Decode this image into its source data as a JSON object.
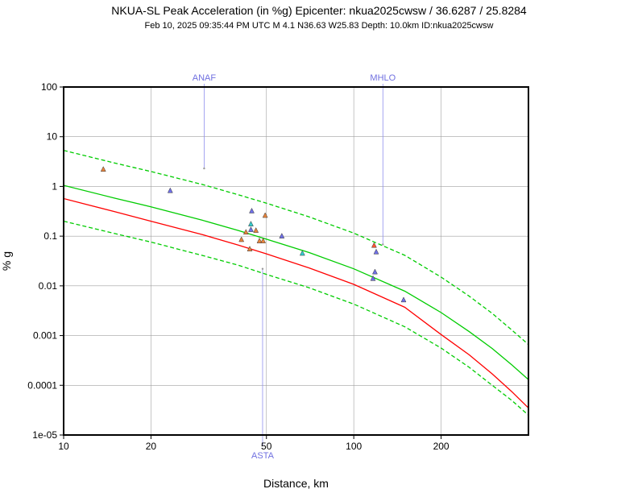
{
  "title": "NKUA-SL Peak Acceleration (in %g) Epicenter: nkua2025cwsw / 36.6287 / 25.8284",
  "subtitle": "Feb 10, 2025 09:35:44 PM UTC   M 4.1   N36.63 W25.83   Depth: 10.0km   ID:nkua2025cwsw",
  "colors": {
    "frame": "#000000",
    "grid": "#a0a0a0",
    "median_fit": "#00cc00",
    "alt_fit": "#ff0000",
    "station_label": "#7070e0"
  },
  "chart_data": {
    "type": "scatter",
    "xscale": "log",
    "yscale": "log",
    "xlim": [
      10,
      400
    ],
    "ylim": [
      1e-05,
      100
    ],
    "xlabel": "Distance, km",
    "ylabel": "% g",
    "x_ticks": [
      {
        "value": 10,
        "label": "10"
      },
      {
        "value": 20,
        "label": "20"
      },
      {
        "value": 50,
        "label": "50"
      },
      {
        "value": 100,
        "label": "100"
      },
      {
        "value": 200,
        "label": "200"
      }
    ],
    "y_ticks": [
      {
        "value": 100,
        "label": "100"
      },
      {
        "value": 10,
        "label": "10"
      },
      {
        "value": 1,
        "label": "1"
      },
      {
        "value": 0.1,
        "label": "0.1"
      },
      {
        "value": 0.01,
        "label": "0.01"
      },
      {
        "value": 0.001,
        "label": "0.001"
      },
      {
        "value": 0.0001,
        "label": "0.0001"
      },
      {
        "value": 1e-05,
        "label": "1e-05"
      }
    ],
    "grid": true,
    "station_labels": [
      {
        "label": "ANAF",
        "x": 30.5,
        "y": 2.3,
        "position": "top"
      },
      {
        "label": "MHLO",
        "x": 126,
        "y": 0.068,
        "position": "top"
      },
      {
        "label": "ASTA",
        "x": 48.5,
        "y": 0.022,
        "position": "bottom"
      }
    ],
    "series": [
      {
        "name": "fit-median",
        "kind": "line",
        "color": "#00cc00",
        "style": "solid",
        "x": [
          10,
          15,
          20,
          30,
          40,
          50,
          70,
          100,
          150,
          200,
          250,
          300,
          350,
          400
        ],
        "y": [
          1.05,
          0.58,
          0.39,
          0.21,
          0.13,
          0.087,
          0.047,
          0.022,
          0.0078,
          0.0029,
          0.0012,
          0.00055,
          0.00026,
          0.00013
        ]
      },
      {
        "name": "fit-plus-sigma",
        "kind": "line",
        "color": "#00cc00",
        "style": "dashed",
        "x": [
          10,
          15,
          20,
          30,
          40,
          50,
          70,
          100,
          150,
          200,
          250,
          300,
          350,
          400
        ],
        "y": [
          5.3,
          2.95,
          2.0,
          1.1,
          0.68,
          0.46,
          0.245,
          0.115,
          0.041,
          0.015,
          0.0062,
          0.0028,
          0.0013,
          0.00066
        ]
      },
      {
        "name": "fit-minus-sigma",
        "kind": "line",
        "color": "#00cc00",
        "style": "dashed",
        "x": [
          10,
          15,
          20,
          30,
          40,
          50,
          70,
          100,
          150,
          200,
          250,
          300,
          350,
          400
        ],
        "y": [
          0.2,
          0.113,
          0.076,
          0.041,
          0.026,
          0.017,
          0.0092,
          0.0043,
          0.0015,
          0.00056,
          0.00023,
          0.0001,
          5e-05,
          2.5e-05
        ]
      },
      {
        "name": "fit-alternate",
        "kind": "line",
        "color": "#ff0000",
        "style": "solid",
        "x": [
          10,
          15,
          20,
          30,
          40,
          50,
          70,
          100,
          150,
          200,
          250,
          300,
          350,
          400
        ],
        "y": [
          0.57,
          0.31,
          0.2,
          0.108,
          0.066,
          0.044,
          0.023,
          0.0107,
          0.0037,
          0.00105,
          0.00041,
          0.00017,
          7.5e-05,
          3.5e-05
        ]
      },
      {
        "name": "stations-orange",
        "kind": "points",
        "color": "#e8843c",
        "x": [
          13.7,
          41,
          42.5,
          43.8,
          46,
          47.3,
          48.7,
          49.5
        ],
        "y": [
          2.2,
          0.085,
          0.12,
          0.055,
          0.13,
          0.08,
          0.08,
          0.26
        ]
      },
      {
        "name": "stations-red",
        "kind": "points",
        "color": "#ff5533",
        "x": [
          117.5
        ],
        "y": [
          0.065
        ]
      },
      {
        "name": "stations-cyan",
        "kind": "points",
        "color": "#33cccc",
        "x": [
          44.2,
          66.5
        ],
        "y": [
          0.175,
          0.045
        ]
      },
      {
        "name": "stations-blue",
        "kind": "points",
        "color": "#7070e8",
        "x": [
          23.3,
          44.5,
          56.5,
          116.5,
          118.3,
          119.5,
          148.5,
          44.2
        ],
        "y": [
          0.82,
          0.32,
          0.1,
          0.014,
          0.019,
          0.048,
          0.0052,
          0.135
        ]
      }
    ]
  }
}
